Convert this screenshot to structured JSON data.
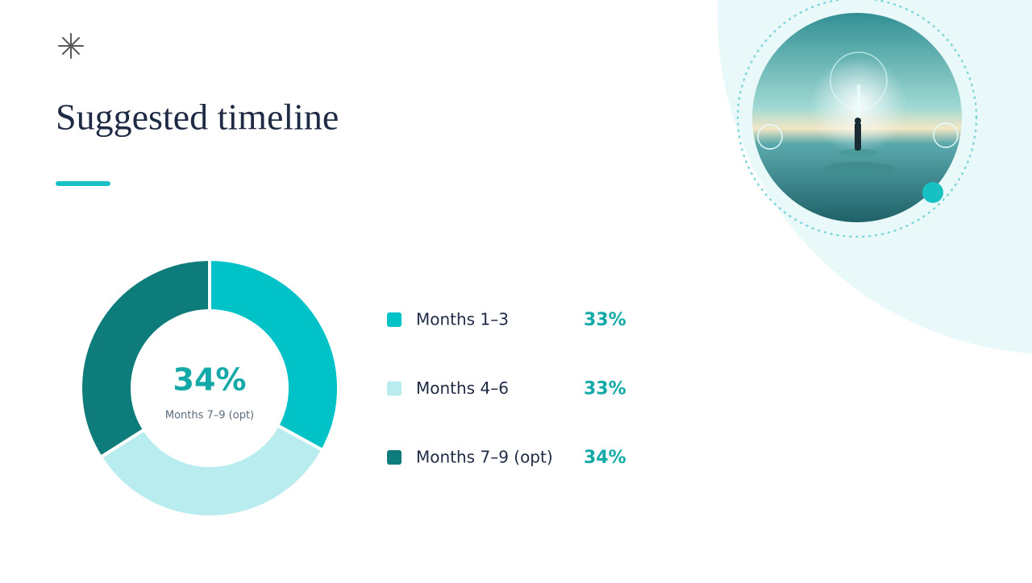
{
  "chart_data": {
    "type": "donut",
    "title": "Suggested timeline",
    "categories": [
      "Months 1–3",
      "Months 4–6",
      "Months 7–9 (opt)"
    ],
    "values": [
      33,
      33,
      34
    ],
    "value_labels": [
      "33%",
      "33%",
      "34%"
    ],
    "colors": [
      "#00c2c7",
      "#b8ecee",
      "#0d7c7a"
    ]
  }
}
